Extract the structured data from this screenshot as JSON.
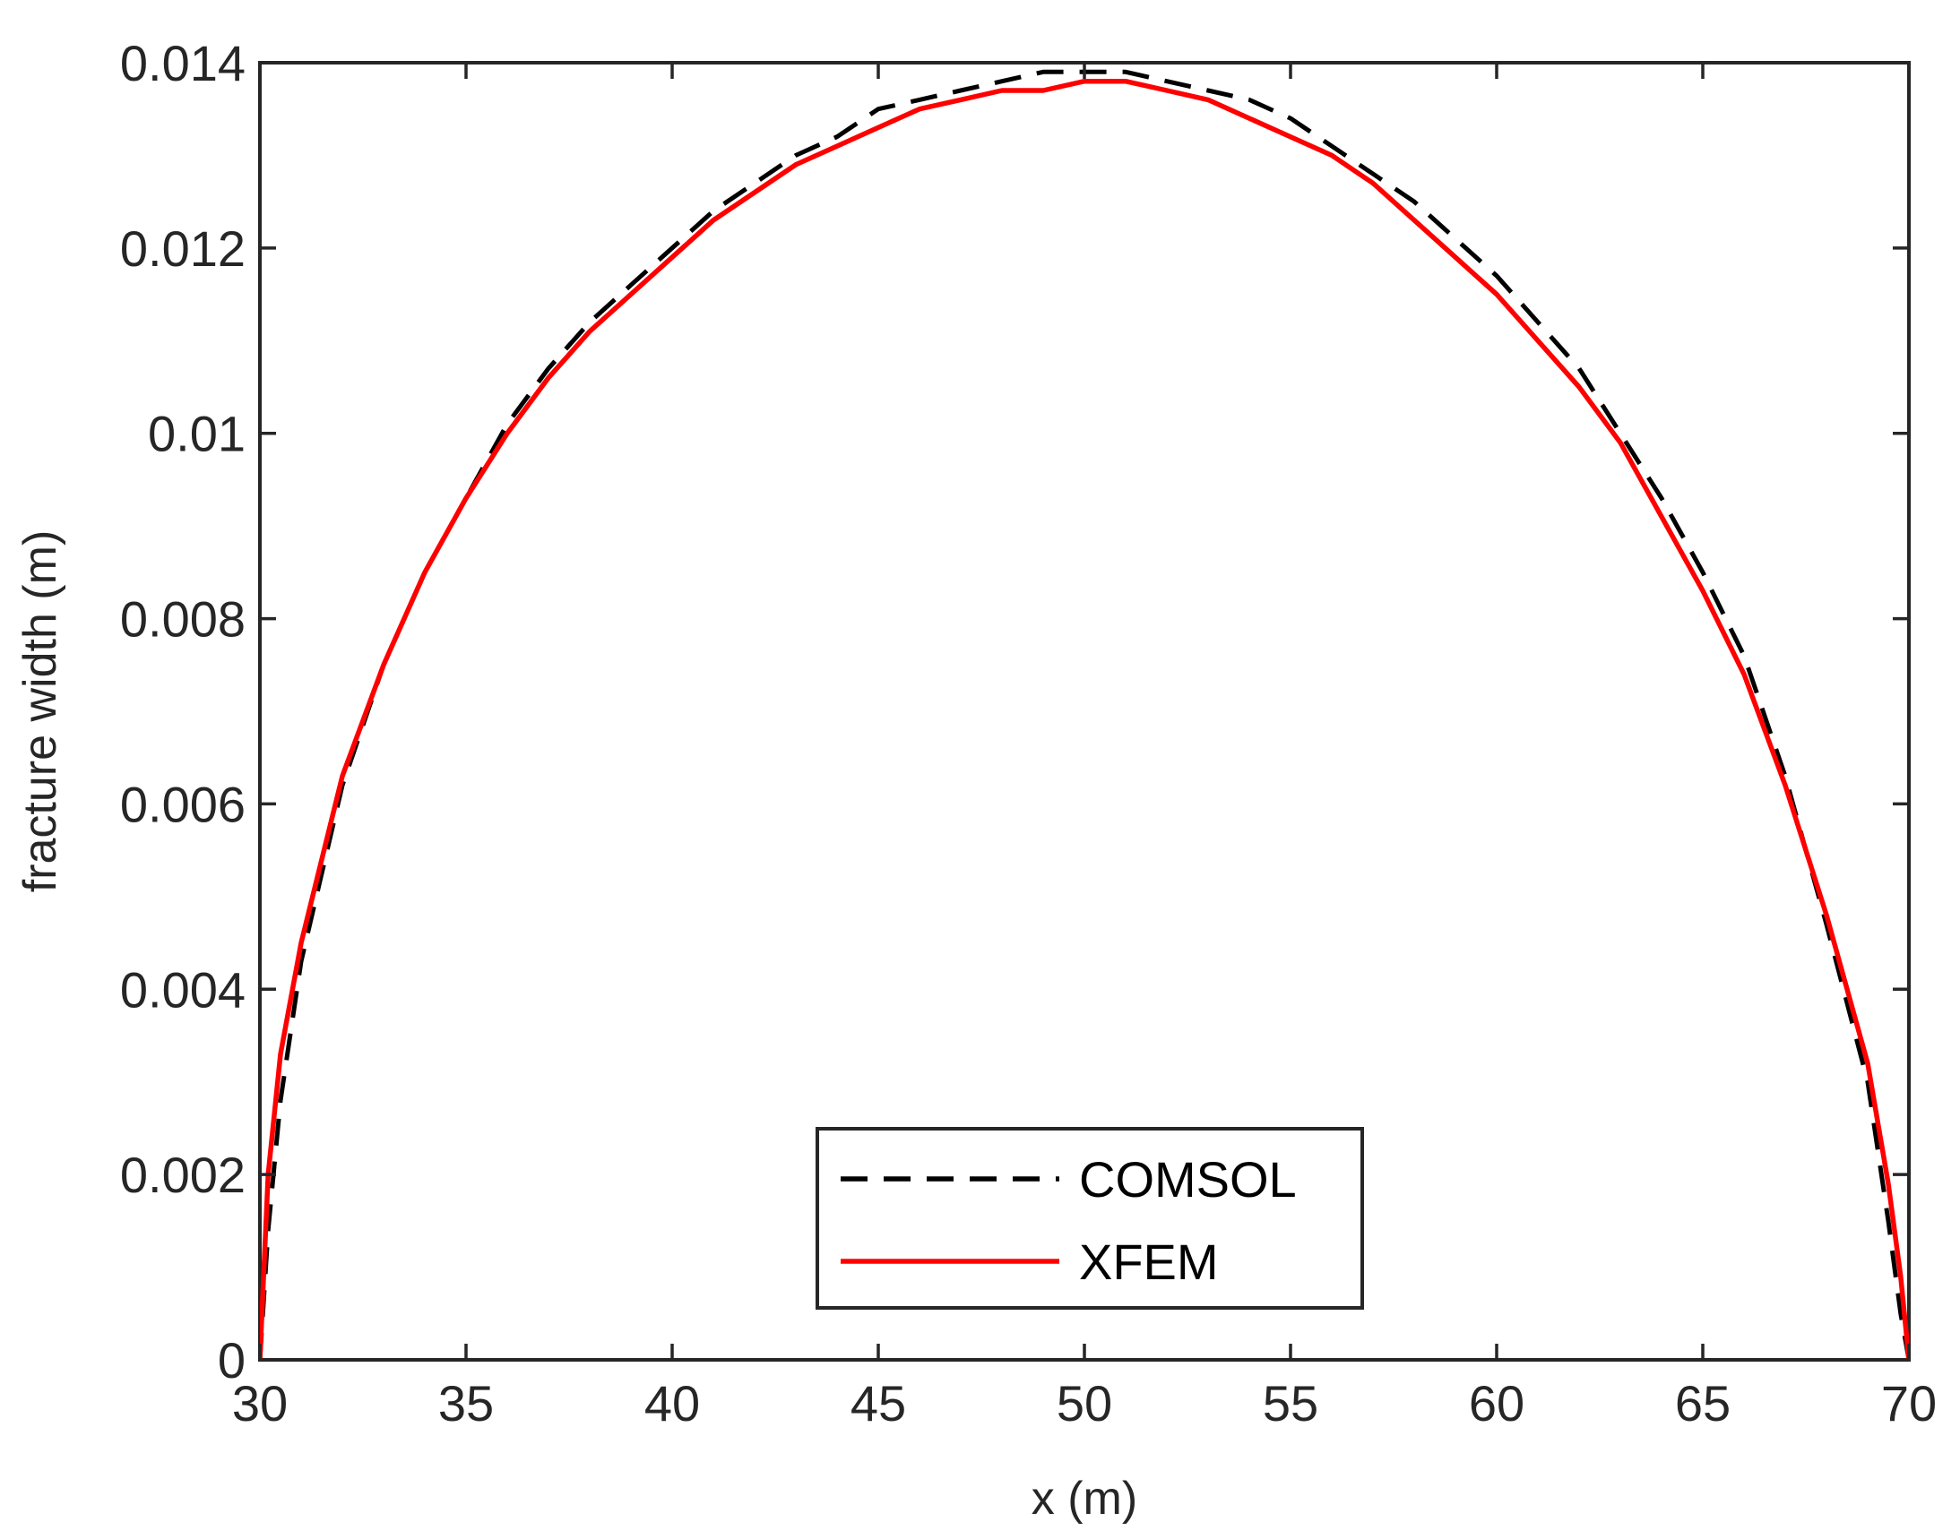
{
  "chart_data": {
    "type": "line",
    "title": "",
    "xlabel": "x (m)",
    "ylabel": "fracture width (m)",
    "xlim": [
      30,
      70
    ],
    "ylim": [
      0,
      0.014
    ],
    "xticks": [
      30,
      35,
      40,
      45,
      50,
      55,
      60,
      65,
      70
    ],
    "xtick_labels": [
      "30",
      "35",
      "40",
      "45",
      "50",
      "55",
      "60",
      "65",
      "70"
    ],
    "yticks": [
      0,
      0.002,
      0.004,
      0.006,
      0.008,
      0.01,
      0.012,
      0.014
    ],
    "ytick_labels": [
      "0",
      "0.002",
      "0.004",
      "0.006",
      "0.008",
      "0.01",
      "0.012",
      "0.014"
    ],
    "grid": false,
    "legend_position": "bottom-center",
    "series": [
      {
        "name": "COMSOL",
        "style": "dashed",
        "color": "#000000",
        "x": [
          30,
          30.2,
          30.5,
          31,
          32,
          33,
          34,
          35,
          36,
          37,
          38,
          39,
          40,
          41,
          42,
          43,
          44,
          45,
          46,
          47,
          48,
          49,
          50,
          51,
          52,
          53,
          54,
          55,
          56,
          57,
          58,
          59,
          60,
          61,
          62,
          63,
          64,
          65,
          66,
          67,
          68,
          69,
          69.5,
          69.8,
          70
        ],
        "y": [
          0,
          0.0014,
          0.0028,
          0.0043,
          0.0062,
          0.0075,
          0.0085,
          0.0093,
          0.0101,
          0.0107,
          0.0112,
          0.0116,
          0.012,
          0.0124,
          0.0127,
          0.013,
          0.0132,
          0.0135,
          0.0136,
          0.0137,
          0.0138,
          0.0139,
          0.0139,
          0.0139,
          0.0138,
          0.0137,
          0.0136,
          0.0134,
          0.0131,
          0.0128,
          0.0125,
          0.0121,
          0.0117,
          0.0112,
          0.0107,
          0.01,
          0.0093,
          0.0085,
          0.0076,
          0.0063,
          0.0047,
          0.003,
          0.0015,
          0.0005,
          0
        ]
      },
      {
        "name": "XFEM",
        "style": "solid",
        "color": "#ff0000",
        "x": [
          30,
          30.2,
          30.5,
          31,
          32,
          33,
          34,
          35,
          36,
          37,
          38,
          39,
          40,
          41,
          42,
          43,
          44,
          45,
          46,
          47,
          48,
          49,
          50,
          51,
          52,
          53,
          54,
          55,
          56,
          57,
          58,
          59,
          60,
          61,
          62,
          63,
          64,
          65,
          66,
          67,
          68,
          69,
          69.5,
          69.8,
          70
        ],
        "y": [
          0,
          0.002,
          0.0033,
          0.0045,
          0.0063,
          0.0075,
          0.0085,
          0.0093,
          0.01,
          0.0106,
          0.0111,
          0.0115,
          0.0119,
          0.0123,
          0.0126,
          0.0129,
          0.0131,
          0.0133,
          0.0135,
          0.0136,
          0.0137,
          0.0137,
          0.0138,
          0.0138,
          0.0137,
          0.0136,
          0.0134,
          0.0132,
          0.013,
          0.0127,
          0.0123,
          0.0119,
          0.0115,
          0.011,
          0.0105,
          0.0099,
          0.0091,
          0.0083,
          0.0074,
          0.0062,
          0.0048,
          0.0032,
          0.0019,
          0.0009,
          0
        ]
      }
    ]
  }
}
